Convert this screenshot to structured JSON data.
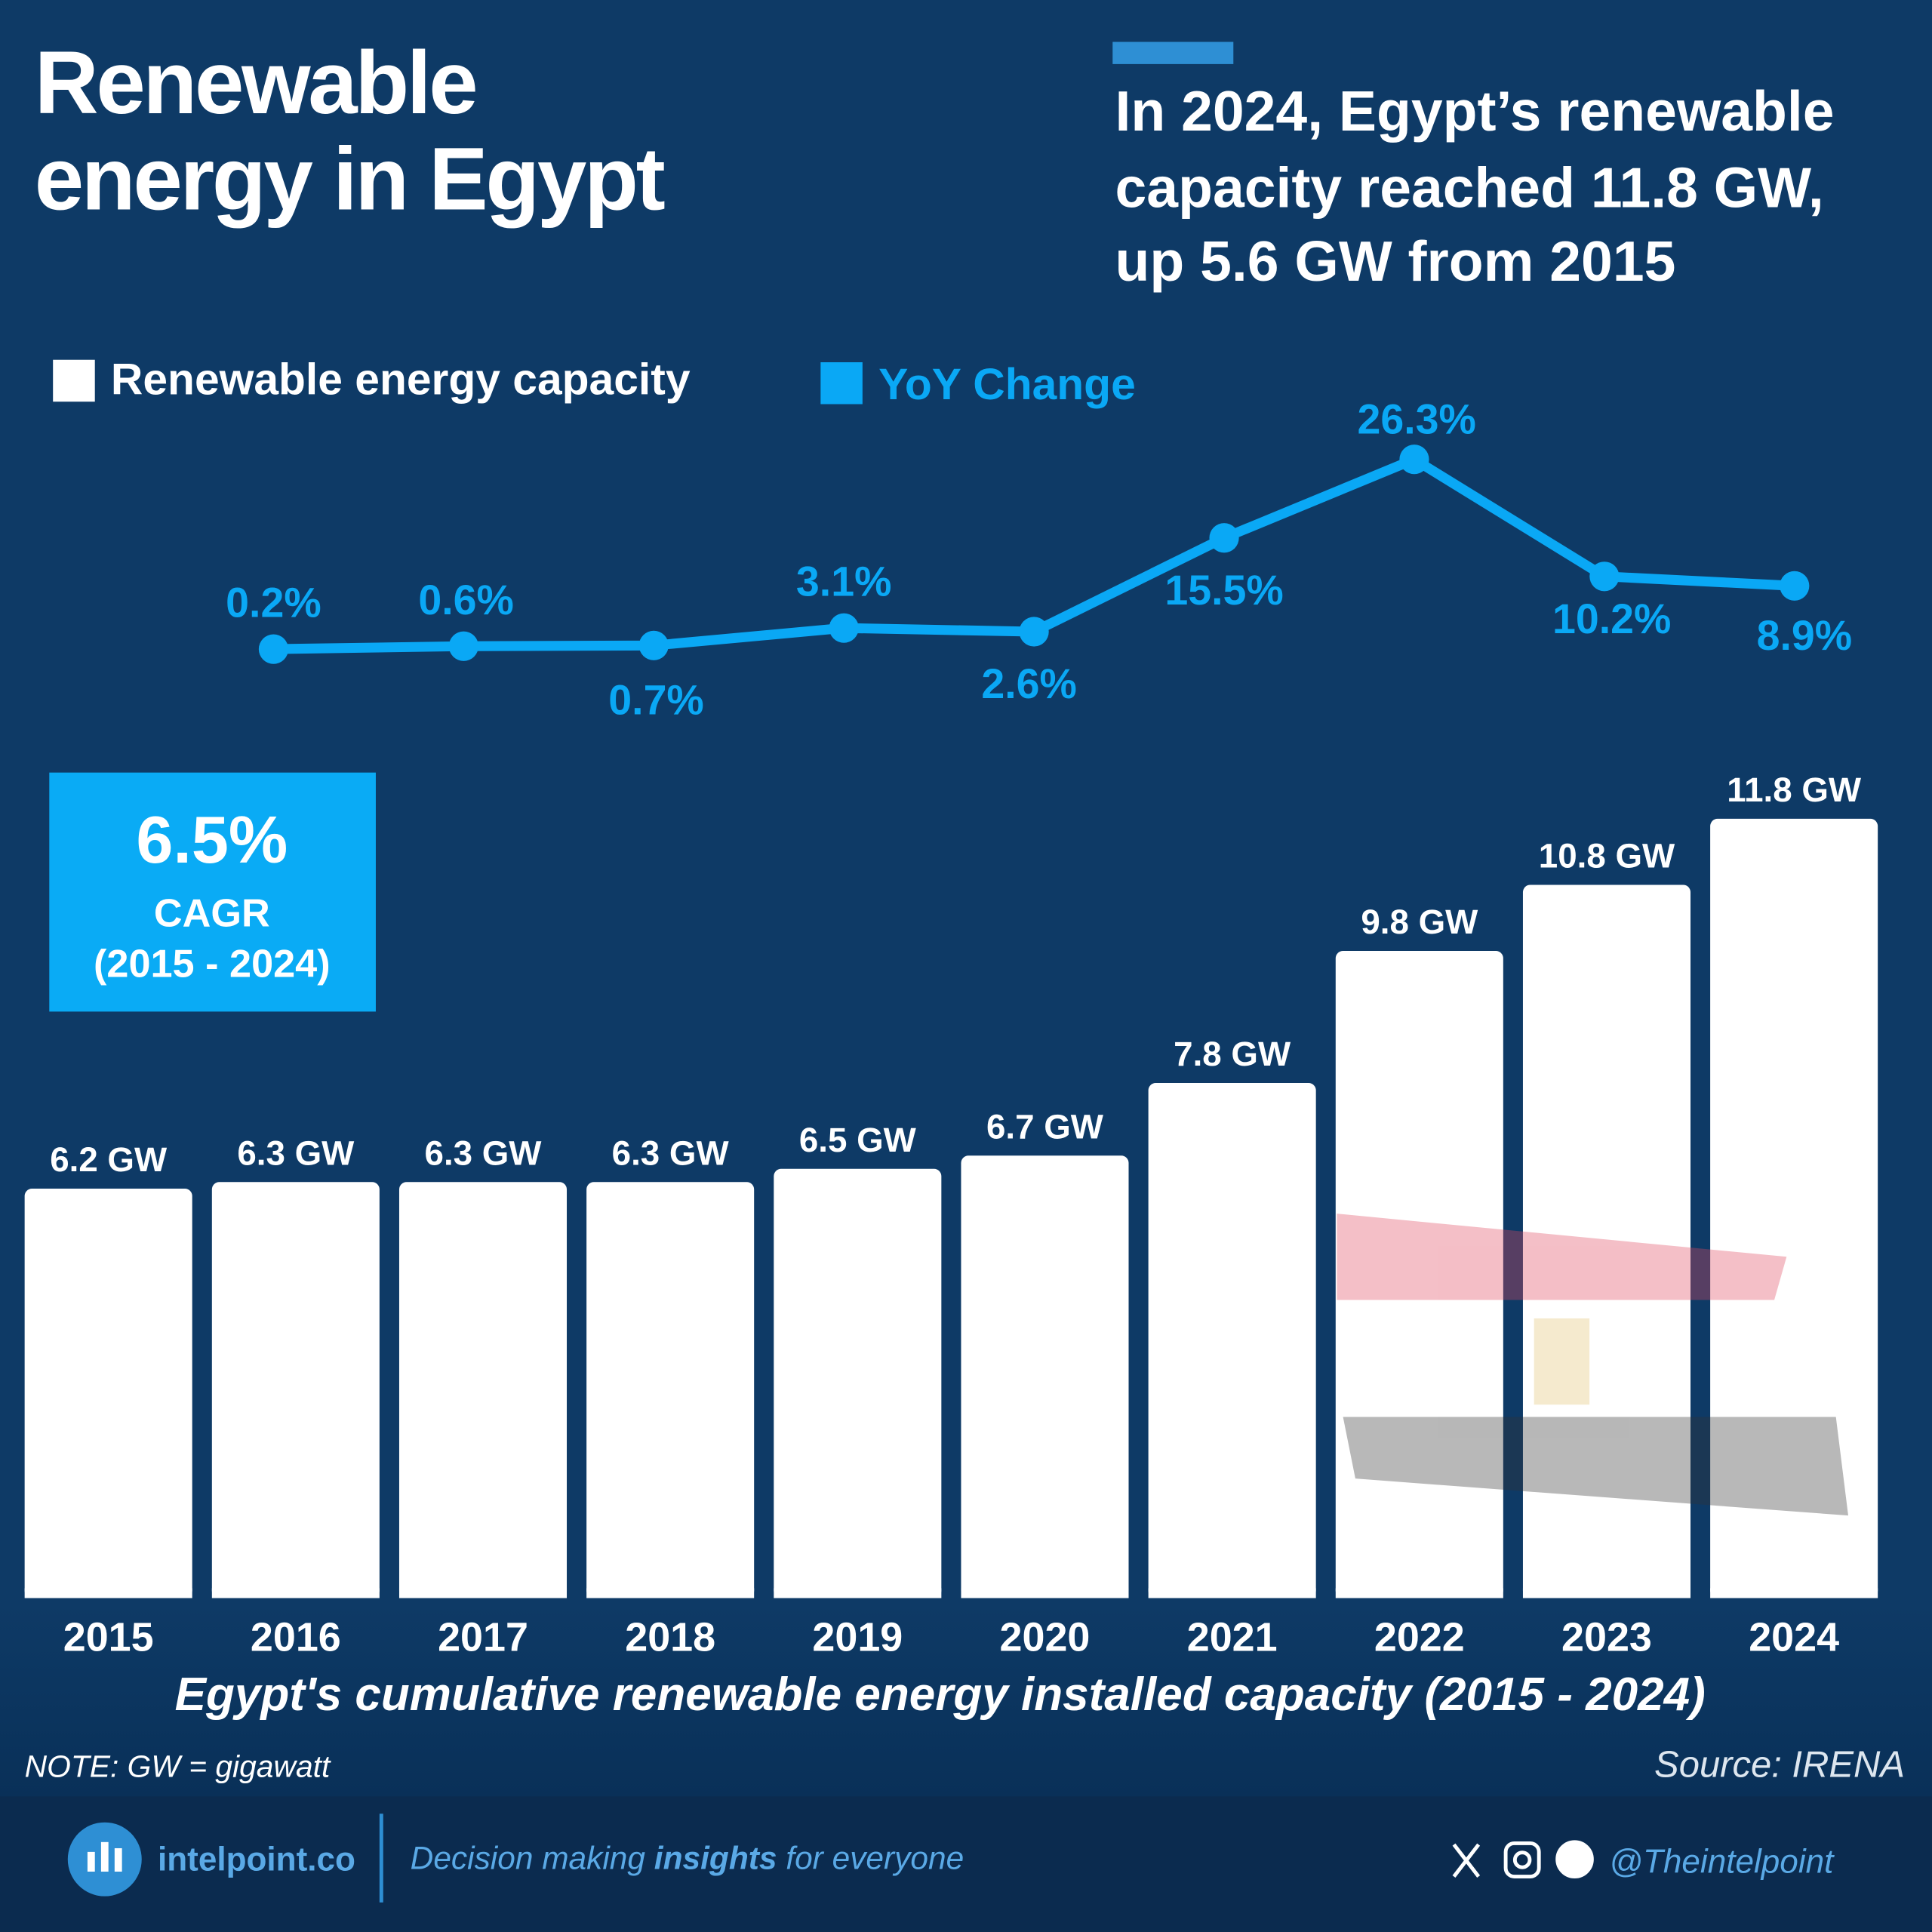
{
  "header": {
    "title": [
      "Renewable",
      "energy in Egypt"
    ],
    "headline": [
      "In 2024, Egypt’s renewable",
      "capacity reached 11.8 GW,",
      "up 5.6 GW from 2015"
    ]
  },
  "chart_data": {
    "type": "bar",
    "categories": [
      "2015",
      "2016",
      "2017",
      "2018",
      "2019",
      "2020",
      "2021",
      "2022",
      "2023",
      "2024"
    ],
    "series": [
      {
        "name": "Renewable energy capacity",
        "color": "#ffffff",
        "type": "bar",
        "values": [
          6.2,
          6.3,
          6.3,
          6.3,
          6.5,
          6.7,
          7.8,
          9.8,
          10.8,
          11.8
        ],
        "value_labels": [
          "6.2 GW",
          "6.3 GW",
          "6.3 GW",
          "6.3 GW",
          "6.5 GW",
          "6.7 GW",
          "7.8 GW",
          "9.8 GW",
          "10.8 GW",
          "11.8 GW"
        ]
      },
      {
        "name": "YoY Change",
        "color": "#0aa8f5",
        "type": "line",
        "values": [
          null,
          0.2,
          0.6,
          0.7,
          3.1,
          2.6,
          15.5,
          26.3,
          10.2,
          8.9
        ],
        "value_labels": [
          null,
          "0.2%",
          "0.6%",
          "0.7%",
          "3.1%",
          "2.6%",
          "15.5%",
          "26.3%",
          "10.2%",
          "8.9%"
        ]
      }
    ],
    "x_label": "Egypt's cumulative renewable energy installed capacity (2015 - 2024)",
    "callout": {
      "value_label": "6.5%",
      "label": "CAGR",
      "period": "(2015 - 2024)"
    },
    "note": "NOTE: GW = gigawatt",
    "source": "Source: IRENA"
  },
  "footer": {
    "brand": "intelpoint.co",
    "tagline": [
      "Decision making ",
      "insights",
      " for everyone"
    ],
    "handle": "@Theintelpoint"
  }
}
